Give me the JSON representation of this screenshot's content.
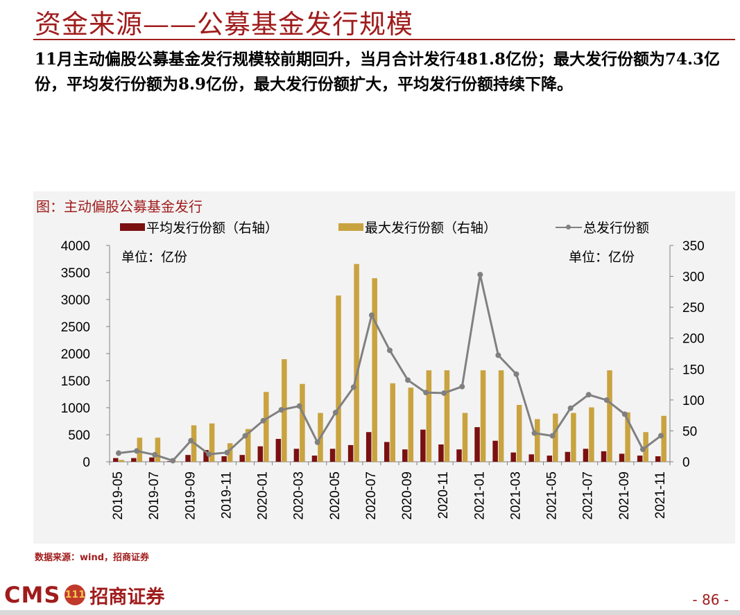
{
  "header": {
    "title": "资金来源——公募基金发行规模",
    "summary": "11月主动偏股公募基金发行规模较前期回升，当月合计发行481.8亿份；最大发行份额为74.3亿份，平均发行份额为8.9亿份，最大发行份额扩大，平均发行份额持续下降。"
  },
  "chart_header": {
    "figure_title": "图：主动偏股公募基金发行",
    "unit_left": "单位：亿份",
    "unit_right": "单位：亿份"
  },
  "legend": {
    "avg": "平均发行份额（右轴）",
    "max": "最大发行份额（右轴）",
    "total": "总发行份额"
  },
  "colors": {
    "avg": "#7b1010",
    "max": "#c9a33f",
    "total": "#808080",
    "accent": "#a01c1c"
  },
  "chart_data": {
    "type": "bar",
    "categories": [
      "2019-05",
      "2019-06",
      "2019-07",
      "2019-08",
      "2019-09",
      "2019-10",
      "2019-11",
      "2019-12",
      "2020-01",
      "2020-02",
      "2020-03",
      "2020-04",
      "2020-05",
      "2020-06",
      "2020-07",
      "2020-08",
      "2020-09",
      "2020-10",
      "2020-11",
      "2020-12",
      "2021-01",
      "2021-02",
      "2021-03",
      "2021-04",
      "2021-05",
      "2021-06",
      "2021-07",
      "2021-08",
      "2021-09",
      "2021-10",
      "2021-11"
    ],
    "x_tick_labels": [
      "2019-05",
      "2019-07",
      "2019-09",
      "2019-11",
      "2020-01",
      "2020-03",
      "2020-05",
      "2020-07",
      "2020-09",
      "2020-11",
      "2021-01",
      "2021-03",
      "2021-05",
      "2021-07",
      "2021-09",
      "2021-11"
    ],
    "series": [
      {
        "name": "平均发行份额（右轴）",
        "type": "bar",
        "axis": "right",
        "values": [
          6,
          6,
          7,
          1,
          11,
          19,
          9,
          11,
          25,
          37,
          21,
          10,
          21,
          27,
          48,
          32,
          20,
          52,
          28,
          20,
          56,
          34,
          15,
          12,
          10,
          16,
          21,
          17,
          13,
          10,
          8.9
        ]
      },
      {
        "name": "最大发行份额（右轴）",
        "type": "bar",
        "axis": "right",
        "values": [
          3,
          39,
          39,
          1,
          59,
          62,
          30,
          53,
          113,
          166,
          126,
          79,
          269,
          320,
          297,
          127,
          120,
          148,
          148,
          79,
          148,
          148,
          92,
          69,
          78,
          79,
          88,
          148,
          80,
          48,
          74.3
        ]
      },
      {
        "name": "总发行份额",
        "type": "line",
        "axis": "left",
        "values": [
          160,
          200,
          130,
          20,
          390,
          140,
          170,
          480,
          760,
          960,
          1030,
          360,
          910,
          1380,
          2710,
          2060,
          1510,
          1280,
          1270,
          1390,
          3460,
          1970,
          1620,
          530,
          480,
          990,
          1240,
          1140,
          880,
          230,
          481.8
        ]
      }
    ],
    "y_left": {
      "range": [
        0,
        4000
      ],
      "ticks": [
        "0",
        "500",
        "1000",
        "1500",
        "2000",
        "2500",
        "3000",
        "3500",
        "4000"
      ]
    },
    "y_right": {
      "range": [
        0,
        350
      ],
      "ticks": [
        "0",
        "50",
        "100",
        "150",
        "200",
        "250",
        "300",
        "350"
      ]
    },
    "grid": false,
    "legend_position": "top"
  },
  "source": "数据来源：wind，招商证券",
  "footer": {
    "logo_cms": "CMS",
    "logo_badge": "111",
    "logo_name": "招商证券",
    "page_number": "- 86 -"
  }
}
